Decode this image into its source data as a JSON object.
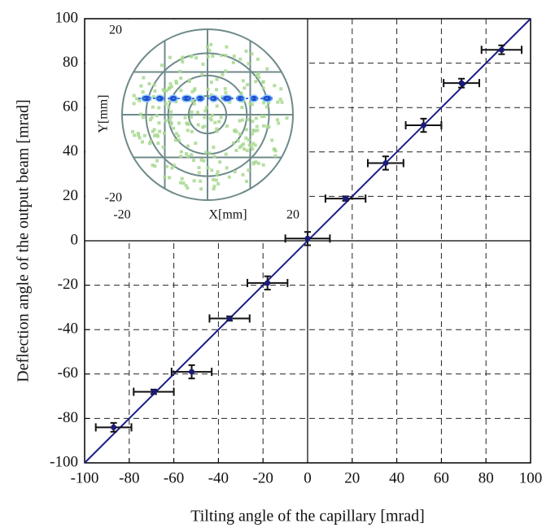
{
  "chart_data": [
    {
      "type": "scatter",
      "xlabel": "Tilting angle of the capillary [mrad]",
      "ylabel": "Deflection angle of the output beam [mrad]",
      "x": [
        -87,
        -69,
        -52,
        -35,
        -18,
        0,
        17,
        35,
        52,
        69,
        87
      ],
      "series": [
        {
          "color": "#1a1a7a",
          "values": [
            -84,
            -68,
            -59,
            -35,
            -19,
            1,
            19,
            35,
            52,
            71,
            86
          ],
          "xerr": [
            8,
            9,
            9,
            9,
            9,
            10,
            9,
            8,
            8,
            8,
            9
          ],
          "yerr": [
            2,
            1,
            3,
            1,
            3,
            3,
            1,
            3,
            3,
            2,
            2
          ]
        }
      ],
      "fit": {
        "x": [
          -100,
          100
        ],
        "values": [
          -100,
          100
        ],
        "color": "#1c1c8c"
      },
      "xlim": [
        -100,
        100
      ],
      "ylim": [
        -100,
        100
      ],
      "xticks": [
        -100,
        -80,
        -60,
        -40,
        -20,
        0,
        20,
        40,
        60,
        80,
        100
      ],
      "yticks": [
        -100,
        -80,
        -60,
        -40,
        -20,
        0,
        20,
        40,
        60,
        80,
        100
      ],
      "grid": true
    },
    {
      "type": "inset",
      "xlabel": "X[mm]",
      "ylabel": "Y[mm]",
      "xlim": [
        -20,
        20
      ],
      "ylim": [
        -20,
        20
      ],
      "xticks": [
        -20,
        20
      ],
      "yticks": [
        -20,
        20
      ]
    }
  ]
}
